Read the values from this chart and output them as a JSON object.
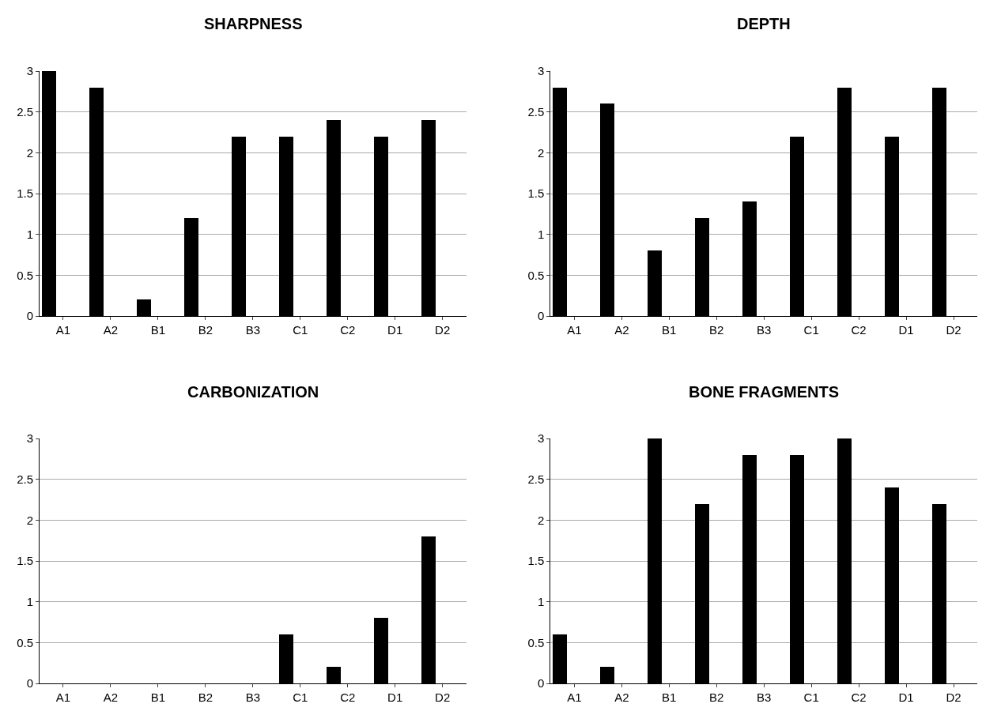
{
  "chart_data": [
    {
      "type": "bar",
      "title": "SHARPNESS",
      "categories": [
        "A1",
        "A2",
        "B1",
        "B2",
        "B3",
        "C1",
        "C2",
        "D1",
        "D2"
      ],
      "values": [
        3,
        2.8,
        0.2,
        1.2,
        2.2,
        2.2,
        2.4,
        2.2,
        2.4
      ],
      "color": "#000000",
      "ylim": [
        0,
        3
      ],
      "yticks": [
        0,
        0.5,
        1,
        1.5,
        2,
        2.5,
        3
      ],
      "grid": "y"
    },
    {
      "type": "bar",
      "title": "DEPTH",
      "categories": [
        "A1",
        "A2",
        "B1",
        "B2",
        "B3",
        "C1",
        "C2",
        "D1",
        "D2"
      ],
      "values": [
        2.8,
        2.6,
        0.8,
        1.2,
        1.4,
        2.2,
        2.8,
        2.2,
        2.8
      ],
      "color": "#000000",
      "ylim": [
        0,
        3
      ],
      "yticks": [
        0,
        0.5,
        1,
        1.5,
        2,
        2.5,
        3
      ],
      "grid": "y"
    },
    {
      "type": "bar",
      "title": "CARBONIZATION",
      "categories": [
        "A1",
        "A2",
        "B1",
        "B2",
        "B3",
        "C1",
        "C2",
        "D1",
        "D2"
      ],
      "values": [
        0,
        0,
        0,
        0,
        0,
        0.6,
        0.2,
        0.8,
        1.8
      ],
      "color": "#000000",
      "ylim": [
        0,
        3
      ],
      "yticks": [
        0,
        0.5,
        1,
        1.5,
        2,
        2.5,
        3
      ],
      "grid": "y"
    },
    {
      "type": "bar",
      "title": "BONE FRAGMENTS",
      "categories": [
        "A1",
        "A2",
        "B1",
        "B2",
        "B3",
        "C1",
        "C2",
        "D1",
        "D2"
      ],
      "values": [
        0.6,
        0.2,
        3,
        2.2,
        2.8,
        2.8,
        3,
        2.4,
        2.2
      ],
      "color": "#000000",
      "ylim": [
        0,
        3
      ],
      "yticks": [
        0,
        0.5,
        1,
        1.5,
        2,
        2.5,
        3
      ],
      "grid": "y"
    }
  ]
}
